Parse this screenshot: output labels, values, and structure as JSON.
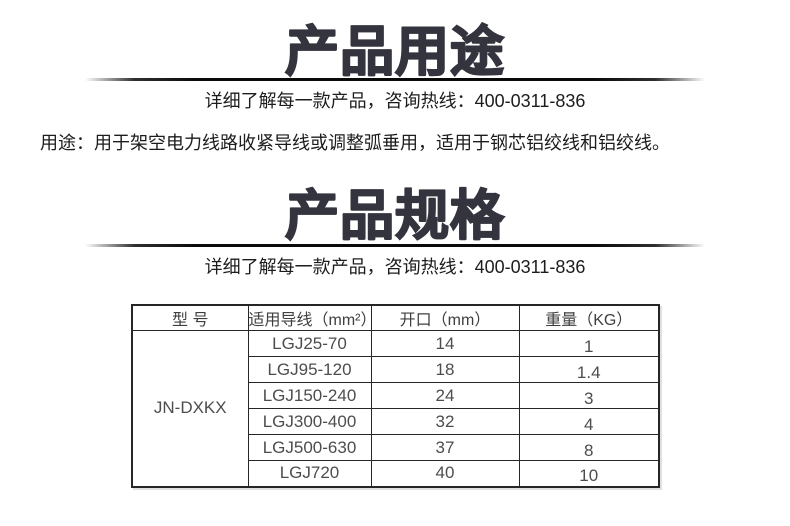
{
  "sections": {
    "usage": {
      "title": "产品用途",
      "hotline": "详细了解每一款产品，咨询热线：400-0311-836",
      "description": "用途：用于架空电力线路收紧导线或调整弧垂用，适用于钢芯铝绞线和铝绞线。"
    },
    "spec": {
      "title": "产品规格",
      "hotline": "详细了解每一款产品，咨询热线：400-0311-836"
    }
  },
  "table": {
    "headers": [
      "型 号",
      "适用导线（mm²）",
      "开口（mm）",
      "重量（KG）"
    ],
    "model": "JN-DXKX",
    "rows": [
      {
        "conductor": "LGJ25-70",
        "opening": "14",
        "weight": "1"
      },
      {
        "conductor": "LGJ95-120",
        "opening": "18",
        "weight": "1.4"
      },
      {
        "conductor": "LGJ150-240",
        "opening": "24",
        "weight": "3"
      },
      {
        "conductor": "LGJ300-400",
        "opening": "32",
        "weight": "4"
      },
      {
        "conductor": "LGJ500-630",
        "opening": "37",
        "weight": "8"
      },
      {
        "conductor": "LGJ720",
        "opening": "40",
        "weight": "10"
      }
    ]
  },
  "colors": {
    "title": "#34343e",
    "divider": "#0a0a0a",
    "body_text": "#1c1c1c",
    "table_text": "#4d4d4d",
    "table_border": "#262626",
    "background": "#ffffff"
  }
}
